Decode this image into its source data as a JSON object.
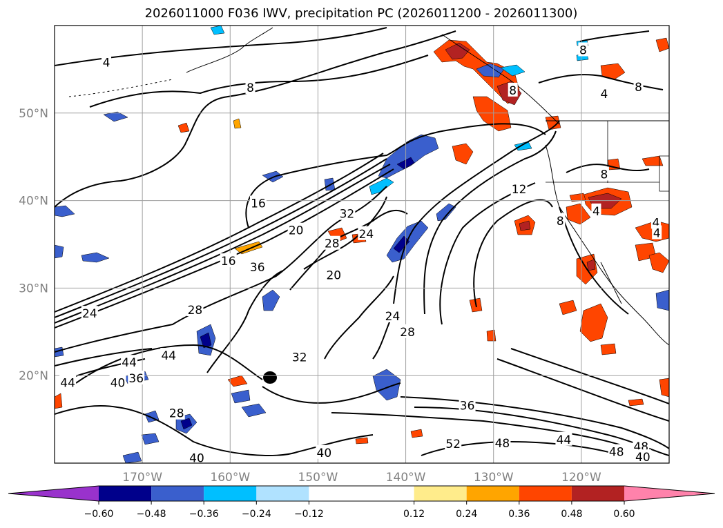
{
  "title": "2026011000 F036 IWV, precipitation PC (2026011200 - 2026011300)",
  "map": {
    "lon_range": [
      -180,
      -110
    ],
    "lat_range": [
      10,
      60
    ],
    "lat_ticks": [
      {
        "value": 50,
        "label": "50°N"
      },
      {
        "value": 40,
        "label": "40°N"
      },
      {
        "value": 30,
        "label": "30°N"
      },
      {
        "value": 20,
        "label": "20°N"
      }
    ],
    "lon_ticks": [
      {
        "value": -170,
        "label": "170°W"
      },
      {
        "value": -160,
        "label": "160°W"
      },
      {
        "value": -150,
        "label": "150°W"
      },
      {
        "value": -140,
        "label": "140°W"
      },
      {
        "value": -130,
        "label": "130°W"
      },
      {
        "value": -120,
        "label": "120°W"
      }
    ],
    "contour_labels": [
      {
        "text": "4",
        "lon": -174.1,
        "lat": 55.8
      },
      {
        "text": "8",
        "lon": -157.7,
        "lat": 52.9
      },
      {
        "text": "8",
        "lon": -119.8,
        "lat": 57.2
      },
      {
        "text": "8",
        "lon": -127.8,
        "lat": 52.6
      },
      {
        "text": "4",
        "lon": -117.4,
        "lat": 52.2
      },
      {
        "text": "8",
        "lon": -113.5,
        "lat": 53.0
      },
      {
        "text": "8",
        "lon": -117.4,
        "lat": 43.0
      },
      {
        "text": "12",
        "lon": -127.1,
        "lat": 41.3
      },
      {
        "text": "4",
        "lon": -118.3,
        "lat": 38.8
      },
      {
        "text": "8",
        "lon": -122.4,
        "lat": 37.7
      },
      {
        "text": "4",
        "lon": -111.5,
        "lat": 37.5
      },
      {
        "text": "4",
        "lon": -111.4,
        "lat": 36.3
      },
      {
        "text": "16",
        "lon": -156.8,
        "lat": 39.7
      },
      {
        "text": "32",
        "lon": -146.7,
        "lat": 38.5
      },
      {
        "text": "20",
        "lon": -152.5,
        "lat": 36.6
      },
      {
        "text": "24",
        "lon": -144.5,
        "lat": 36.2
      },
      {
        "text": "28",
        "lon": -148.4,
        "lat": 35.1
      },
      {
        "text": "16",
        "lon": -160.2,
        "lat": 33.1
      },
      {
        "text": "36",
        "lon": -156.9,
        "lat": 32.4
      },
      {
        "text": "20",
        "lon": -148.2,
        "lat": 31.5
      },
      {
        "text": "24",
        "lon": -176.0,
        "lat": 27.1
      },
      {
        "text": "28",
        "lon": -164.0,
        "lat": 27.5
      },
      {
        "text": "24",
        "lon": -141.5,
        "lat": 26.8
      },
      {
        "text": "28",
        "lon": -139.8,
        "lat": 25.0
      },
      {
        "text": "32",
        "lon": -152.1,
        "lat": 22.1
      },
      {
        "text": "44",
        "lon": -167.0,
        "lat": 22.3
      },
      {
        "text": "44",
        "lon": -171.5,
        "lat": 21.5
      },
      {
        "text": "40",
        "lon": -172.8,
        "lat": 19.2
      },
      {
        "text": "36",
        "lon": -170.7,
        "lat": 19.7
      },
      {
        "text": "44",
        "lon": -178.5,
        "lat": 19.2
      },
      {
        "text": "36",
        "lon": -133.0,
        "lat": 16.6
      },
      {
        "text": "28",
        "lon": -166.1,
        "lat": 15.7
      },
      {
        "text": "52",
        "lon": -134.6,
        "lat": 12.2
      },
      {
        "text": "48",
        "lon": -129.0,
        "lat": 12.3
      },
      {
        "text": "44",
        "lon": -122.0,
        "lat": 12.7
      },
      {
        "text": "40",
        "lon": -163.8,
        "lat": 10.6
      },
      {
        "text": "40",
        "lon": -149.3,
        "lat": 11.2
      },
      {
        "text": "48",
        "lon": -116.0,
        "lat": 11.3
      },
      {
        "text": "48",
        "lon": -113.2,
        "lat": 11.9
      },
      {
        "text": "40",
        "lon": -113.0,
        "lat": 10.7
      }
    ]
  },
  "colorbar": {
    "colors": [
      "#9932cc",
      "#00008b",
      "#3a5fcd",
      "#00bfff",
      "#b0e2ff",
      "#ffffff",
      "#ffec8b",
      "#ffa500",
      "#ff4500",
      "#b22222",
      "#ff82ab"
    ],
    "ticks": [
      {
        "value": -0.6,
        "label": "−0.60"
      },
      {
        "value": -0.48,
        "label": "−0.48"
      },
      {
        "value": -0.36,
        "label": "−0.36"
      },
      {
        "value": -0.24,
        "label": "−0.24"
      },
      {
        "value": -0.12,
        "label": "−0.12"
      },
      {
        "value": 0.12,
        "label": "0.12"
      },
      {
        "value": 0.24,
        "label": "0.24"
      },
      {
        "value": 0.36,
        "label": "0.36"
      },
      {
        "value": 0.48,
        "label": "0.48"
      },
      {
        "value": 0.6,
        "label": "0.60"
      }
    ]
  }
}
